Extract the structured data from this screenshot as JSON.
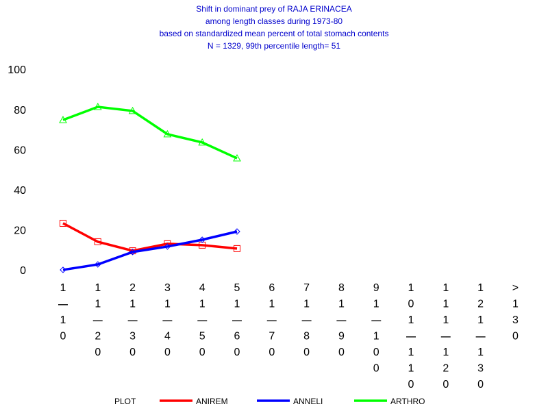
{
  "chart_data": {
    "type": "line",
    "title": [
      "Shift in dominant prey of RAJA ERINACEA",
      "among length classes during 1973-80",
      "based on standardized mean percent of  total stomach contents",
      "N =  1329, 99th percentile  length= 51"
    ],
    "categories": [
      "1-10",
      "11-20",
      "21-30",
      "31-40",
      "41-50",
      "51-60",
      "61-70",
      "71-80",
      "81-90",
      "91-100",
      "101-110",
      "111-120",
      "121-130",
      ">130"
    ],
    "series": [
      {
        "name": "ANIREM",
        "color": "#ff0000",
        "marker": "square",
        "values": [
          23.9,
          14.7,
          10.2,
          13.7,
          13,
          11.3,
          null,
          null,
          null,
          null,
          null,
          null,
          null,
          null
        ]
      },
      {
        "name": "ANNELI",
        "color": "#0000ff",
        "marker": "diamond",
        "values": [
          0.7,
          3.4,
          9.6,
          12.3,
          15.7,
          19.8,
          null,
          null,
          null,
          null,
          null,
          null,
          null,
          null
        ]
      },
      {
        "name": "ARTHRO",
        "color": "#00ff00",
        "marker": "triangle",
        "values": [
          75.4,
          81.9,
          79.9,
          68.3,
          64.2,
          56.3,
          null,
          null,
          null,
          null,
          null,
          null,
          null,
          null
        ]
      }
    ],
    "legend_title": "PLOT",
    "ylim": [
      0,
      100
    ],
    "yticks": [
      0,
      20,
      40,
      60,
      80,
      100
    ]
  }
}
